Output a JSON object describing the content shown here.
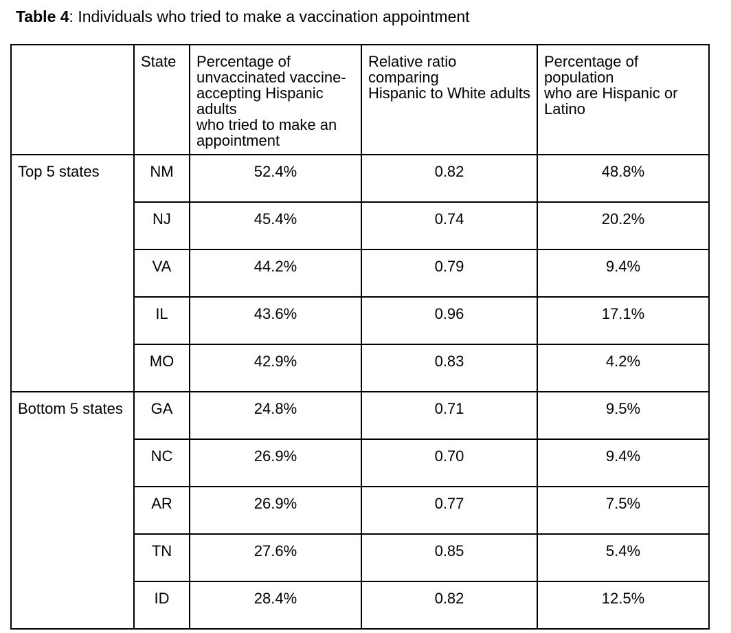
{
  "page": {
    "title_bold": "Table 4",
    "title_rest": ": Individuals who tried to make a vaccination appointment"
  },
  "table": {
    "column_headers": {
      "group": "",
      "state": "State",
      "pct_tried": "Percentage of\nunvaccinated vaccine-\naccepting Hispanic adults\nwho tried to make an\nappointment",
      "ratio": "Relative ratio comparing\nHispanic to White adults",
      "pct_population": "Percentage of population\nwho are Hispanic or Latino"
    },
    "groups": [
      {
        "label": "Top 5 states",
        "rows": [
          {
            "state": "NM",
            "pct_tried": "52.4%",
            "ratio": "0.82",
            "pct_population": "48.8%"
          },
          {
            "state": "NJ",
            "pct_tried": "45.4%",
            "ratio": "0.74",
            "pct_population": "20.2%"
          },
          {
            "state": "VA",
            "pct_tried": "44.2%",
            "ratio": "0.79",
            "pct_population": "9.4%"
          },
          {
            "state": "IL",
            "pct_tried": "43.6%",
            "ratio": "0.96",
            "pct_population": "17.1%"
          },
          {
            "state": "MO",
            "pct_tried": "42.9%",
            "ratio": "0.83",
            "pct_population": "4.2%"
          }
        ]
      },
      {
        "label": "Bottom 5 states",
        "rows": [
          {
            "state": "GA",
            "pct_tried": "24.8%",
            "ratio": "0.71",
            "pct_population": "9.5%"
          },
          {
            "state": "NC",
            "pct_tried": "26.9%",
            "ratio": "0.70",
            "pct_population": "9.4%"
          },
          {
            "state": "AR",
            "pct_tried": "26.9%",
            "ratio": "0.77",
            "pct_population": "7.5%"
          },
          {
            "state": "TN",
            "pct_tried": "27.6%",
            "ratio": "0.85",
            "pct_population": "5.4%"
          },
          {
            "state": "ID",
            "pct_tried": "28.4%",
            "ratio": "0.82",
            "pct_population": "12.5%"
          }
        ]
      }
    ]
  }
}
